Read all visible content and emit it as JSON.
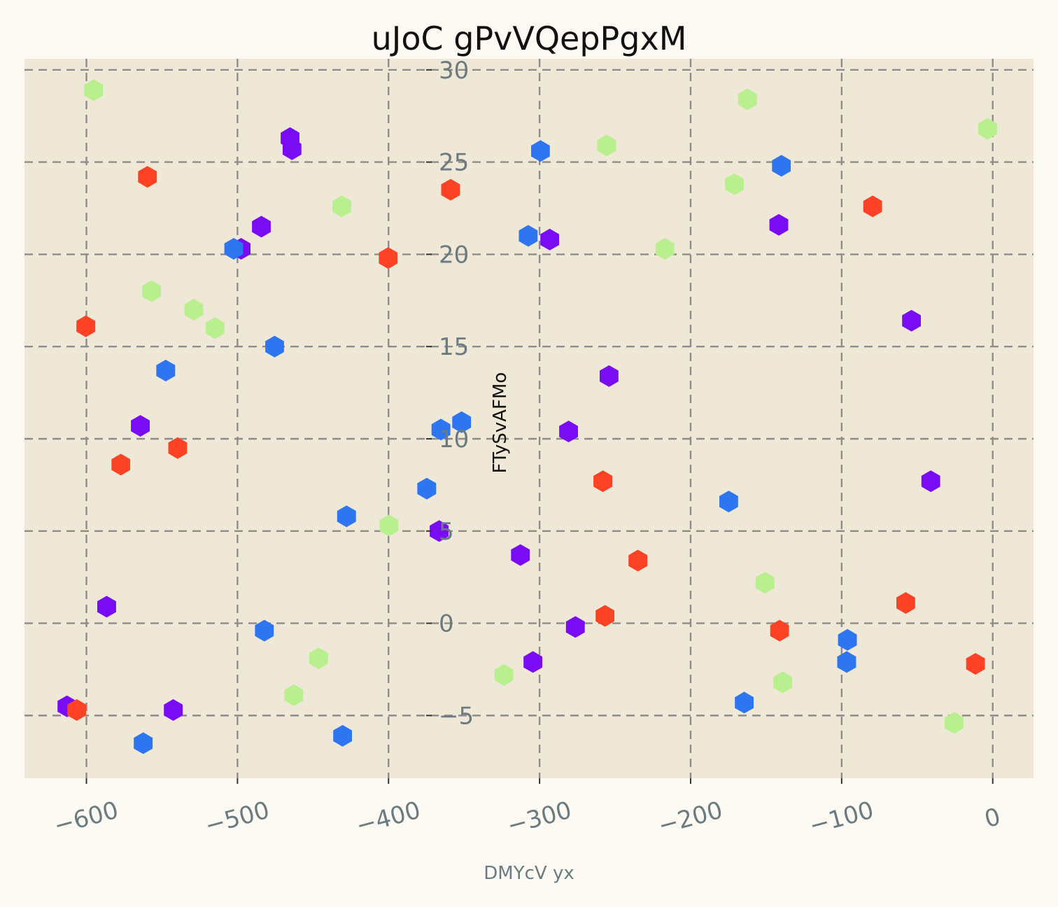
{
  "chart_data": {
    "type": "scatter",
    "title": "uJoC gPvVQepPgxM",
    "xlabel": "DMYcV yx",
    "ylabel": "FTySvAFMo",
    "xlim": [
      -641,
      27
    ],
    "ylim": [
      -8.4,
      30.6
    ],
    "x_ticks": [
      -600,
      -500,
      -400,
      -300,
      -200,
      -100,
      0
    ],
    "x_tick_labels": [
      "−600",
      "−500",
      "−400",
      "−300",
      "−200",
      "−100",
      "0"
    ],
    "y_ticks": [
      -5,
      0,
      5,
      10,
      15,
      20,
      25,
      30
    ],
    "y_tick_labels": [
      "−5",
      "0",
      "5",
      "10",
      "15",
      "20",
      "25",
      "30"
    ],
    "grid": true,
    "marker": "hexagon",
    "colors": {
      "background": "#fdf9f3",
      "plot_background": "#efe8d7",
      "purple": "#7a0cf5",
      "blue": "#2e75f2",
      "green": "#b9ef8e",
      "red": "#fd4225"
    },
    "series": [
      {
        "color": "#7a0cf5",
        "points": [
          [
            -465.2,
            26.3
          ],
          [
            -463.9,
            25.7
          ],
          [
            -484.2,
            21.5
          ],
          [
            -497.6,
            20.3
          ],
          [
            -293.3,
            20.8
          ],
          [
            -53.8,
            16.4
          ],
          [
            -254.0,
            13.4
          ],
          [
            -280.8,
            10.4
          ],
          [
            -564.3,
            10.7
          ],
          [
            -41.0,
            7.7
          ],
          [
            -366.5,
            5.0
          ],
          [
            -312.7,
            3.7
          ],
          [
            -586.6,
            0.9
          ],
          [
            -276.3,
            -0.2
          ],
          [
            -304.4,
            -2.1
          ],
          [
            -612.9,
            -4.5
          ],
          [
            -542.5,
            -4.7
          ],
          [
            -141.6,
            21.6
          ]
        ]
      },
      {
        "color": "#2e75f2",
        "points": [
          [
            -299.4,
            25.6
          ],
          [
            -139.9,
            24.8
          ],
          [
            -502.5,
            20.3
          ],
          [
            -307.5,
            21.0
          ],
          [
            -475.4,
            15.0
          ],
          [
            -547.5,
            13.7
          ],
          [
            -351.6,
            10.9
          ],
          [
            -365.3,
            10.5
          ],
          [
            -374.7,
            7.3
          ],
          [
            -427.8,
            5.8
          ],
          [
            -174.8,
            6.6
          ],
          [
            -482.2,
            -0.4
          ],
          [
            -96.2,
            -0.9
          ],
          [
            -96.7,
            -2.1
          ],
          [
            -164.5,
            -4.3
          ],
          [
            -562.4,
            -6.5
          ],
          [
            -430.4,
            -6.1
          ]
        ]
      },
      {
        "color": "#b9ef8e",
        "points": [
          [
            -595.2,
            28.9
          ],
          [
            -255.6,
            25.9
          ],
          [
            -162.4,
            28.4
          ],
          [
            -3.4,
            26.8
          ],
          [
            -171.0,
            23.8
          ],
          [
            -430.9,
            22.6
          ],
          [
            -217.0,
            20.3
          ],
          [
            -556.9,
            18.0
          ],
          [
            -528.9,
            17.0
          ],
          [
            -514.9,
            16.0
          ],
          [
            -399.7,
            5.3
          ],
          [
            -150.8,
            2.2
          ],
          [
            -446.3,
            -1.9
          ],
          [
            -462.7,
            -3.9
          ],
          [
            -323.6,
            -2.8
          ],
          [
            -139.0,
            -3.2
          ],
          [
            -25.6,
            -5.4
          ]
        ]
      },
      {
        "color": "#fd4225",
        "points": [
          [
            -559.6,
            24.2
          ],
          [
            -358.9,
            23.5
          ],
          [
            -79.5,
            22.6
          ],
          [
            -400.2,
            19.8
          ],
          [
            -600.4,
            16.1
          ],
          [
            -577.2,
            8.6
          ],
          [
            -539.6,
            9.5
          ],
          [
            -258.1,
            7.7
          ],
          [
            -234.9,
            3.4
          ],
          [
            -57.6,
            1.1
          ],
          [
            -256.7,
            0.4
          ],
          [
            -141.1,
            -0.4
          ],
          [
            -11.4,
            -2.2
          ],
          [
            -606.4,
            -4.7
          ]
        ]
      }
    ]
  }
}
